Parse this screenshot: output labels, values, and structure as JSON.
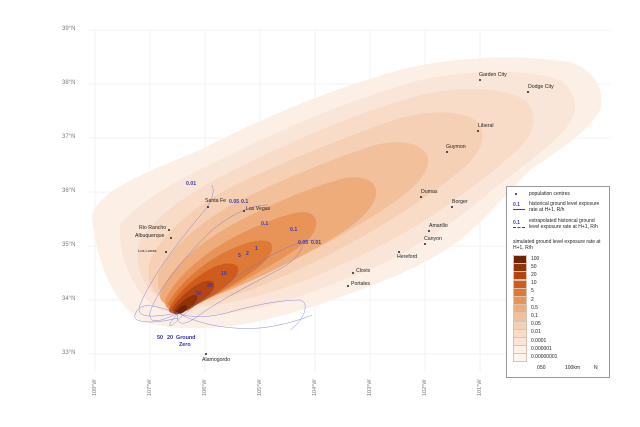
{
  "colors": {
    "ramp": [
      "#6e2206",
      "#8f3208",
      "#b34512",
      "#cf5c1d",
      "#de7a35",
      "#e89458",
      "#eeac7a",
      "#f2c09b",
      "#f5d0b4",
      "#f8dcc8",
      "#fae6d8",
      "#fcefe5"
    ],
    "historical": "#3a3ad0",
    "background": "#ffffff"
  },
  "latitudes": [
    "39°N",
    "38°N",
    "37°N",
    "36°N",
    "35°N",
    "34°N",
    "33°N"
  ],
  "longitudes": [
    "108°W",
    "107°W",
    "106°W",
    "105°W",
    "104°W",
    "103°W",
    "102°W",
    "101°W"
  ],
  "cities": [
    {
      "name": "Garden City"
    },
    {
      "name": "Dodge City"
    },
    {
      "name": "Liberal"
    },
    {
      "name": "Guymon"
    },
    {
      "name": "Dumas"
    },
    {
      "name": "Borger"
    },
    {
      "name": "Amarillo"
    },
    {
      "name": "Canyon"
    },
    {
      "name": "Hereford"
    },
    {
      "name": "Clovis"
    },
    {
      "name": "Portales"
    },
    {
      "name": "Santa Fe"
    },
    {
      "name": "Las Vegas"
    },
    {
      "name": "Rio Rancho"
    },
    {
      "name": "Albuquerque"
    },
    {
      "name": "Los Lunas"
    },
    {
      "name": "Alamogordo"
    }
  ],
  "contour_labels": [
    "0.01",
    "0.05",
    "0.1",
    "0.1",
    "0.05",
    "0.01",
    "0.1",
    "1",
    "2",
    "5",
    "10",
    "20",
    "50"
  ],
  "ground_zero": {
    "label_line1": "50",
    "label_line2": "20",
    "name_line1": "Ground",
    "name_line2": "Zero"
  },
  "legend": {
    "population": "population centres",
    "historical_key": "0.1",
    "historical_text": "historical ground level exposure rate at H+1, R/h",
    "extrapolated_key": "0.1",
    "extrapolated_text": "extrapolated historical ground level exposure rate at H+1, R/h",
    "simulated_text": "simulated ground level exposure rate at H+1, R/h",
    "values": [
      "100",
      "50",
      "20",
      "10",
      "5",
      "2",
      "0.5",
      "0.1",
      "0.05",
      "0.01",
      "0.0001",
      "0.000001",
      "0.00000001"
    ],
    "scale_labels": [
      "0",
      "50",
      "100km"
    ],
    "north": "N"
  }
}
